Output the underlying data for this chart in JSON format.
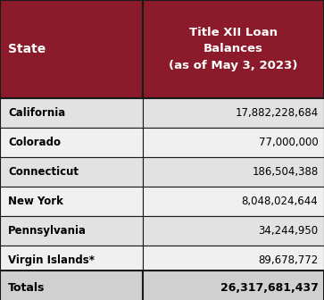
{
  "header_col1": "State",
  "header_col2": "Title XII Loan\nBalances\n(as of May 3, 2023)",
  "rows": [
    [
      "California",
      "17,882,228,684"
    ],
    [
      "Colorado",
      "77,000,000"
    ],
    [
      "Connecticut",
      "186,504,388"
    ],
    [
      "New York",
      "8,048,024,644"
    ],
    [
      "Pennsylvania",
      "34,244,950"
    ],
    [
      "Virgin Islands*",
      "89,678,772"
    ]
  ],
  "totals_label": "Totals",
  "totals_value": "26,317,681,437",
  "header_bg": "#8B1A2A",
  "header_text": "#FFFFFF",
  "row_bg_odd": "#E2E2E2",
  "row_bg_even": "#F0F0F0",
  "totals_bg": "#D0D0D0",
  "border_color": "#1a1a1a",
  "text_color": "#000000",
  "fig_width": 3.63,
  "fig_height": 3.36,
  "dpi": 100
}
